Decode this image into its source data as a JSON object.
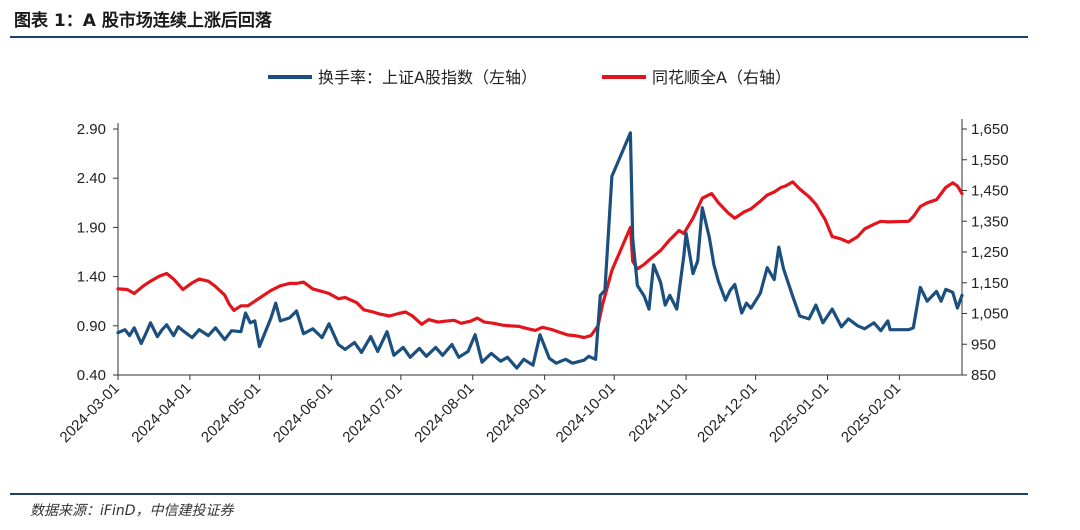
{
  "header": {
    "title": "图表 1：A 股市场连续上涨后回落",
    "source": "数据来源：iFinD，中信建投证券"
  },
  "chart_data": {
    "type": "line",
    "title": "图表 1：A 股市场连续上涨后回落",
    "x_ticks": [
      "2024-03-01",
      "2024-04-01",
      "2024-05-01",
      "2024-06-01",
      "2024-07-01",
      "2024-08-01",
      "2024-09-01",
      "2024-10-01",
      "2024-11-01",
      "2024-12-01",
      "2025-01-01",
      "2025-02-01"
    ],
    "x_range": [
      "2024-03-01",
      "2025-02-28"
    ],
    "y_left": {
      "label": "",
      "ylim": [
        0.4,
        2.9
      ],
      "ticks": [
        "0.40",
        "0.90",
        "1.40",
        "1.90",
        "2.40",
        "2.90"
      ]
    },
    "y_right": {
      "label": "",
      "ylim": [
        850,
        1650
      ],
      "ticks": [
        "850",
        "950",
        "1,050",
        "1,150",
        "1,250",
        "1,350",
        "1,450",
        "1,550",
        "1,650"
      ]
    },
    "legend_position": "top-center",
    "series": [
      {
        "name": "换手率：上证A股指数（左轴）",
        "axis": "left",
        "color": "#1b4f7e",
        "points": [
          [
            "2024-03-01",
            0.83
          ],
          [
            "2024-03-04",
            0.86
          ],
          [
            "2024-03-06",
            0.8
          ],
          [
            "2024-03-08",
            0.88
          ],
          [
            "2024-03-11",
            0.72
          ],
          [
            "2024-03-13",
            0.82
          ],
          [
            "2024-03-15",
            0.93
          ],
          [
            "2024-03-18",
            0.79
          ],
          [
            "2024-03-20",
            0.86
          ],
          [
            "2024-03-22",
            0.91
          ],
          [
            "2024-03-25",
            0.8
          ],
          [
            "2024-03-27",
            0.89
          ],
          [
            "2024-03-29",
            0.85
          ],
          [
            "2024-04-02",
            0.78
          ],
          [
            "2024-04-05",
            0.86
          ],
          [
            "2024-04-09",
            0.8
          ],
          [
            "2024-04-12",
            0.88
          ],
          [
            "2024-04-16",
            0.76
          ],
          [
            "2024-04-19",
            0.85
          ],
          [
            "2024-04-23",
            0.84
          ],
          [
            "2024-04-25",
            1.03
          ],
          [
            "2024-04-27",
            0.93
          ],
          [
            "2024-04-29",
            0.95
          ],
          [
            "2024-05-01",
            0.69
          ],
          [
            "2024-05-06",
            0.98
          ],
          [
            "2024-05-08",
            1.13
          ],
          [
            "2024-05-10",
            0.95
          ],
          [
            "2024-05-14",
            0.98
          ],
          [
            "2024-05-17",
            1.05
          ],
          [
            "2024-05-20",
            0.82
          ],
          [
            "2024-05-24",
            0.87
          ],
          [
            "2024-05-28",
            0.78
          ],
          [
            "2024-05-31",
            0.92
          ],
          [
            "2024-06-04",
            0.71
          ],
          [
            "2024-06-07",
            0.66
          ],
          [
            "2024-06-11",
            0.73
          ],
          [
            "2024-06-14",
            0.63
          ],
          [
            "2024-06-18",
            0.79
          ],
          [
            "2024-06-21",
            0.64
          ],
          [
            "2024-06-25",
            0.84
          ],
          [
            "2024-06-28",
            0.6
          ],
          [
            "2024-07-02",
            0.68
          ],
          [
            "2024-07-05",
            0.58
          ],
          [
            "2024-07-09",
            0.67
          ],
          [
            "2024-07-12",
            0.59
          ],
          [
            "2024-07-16",
            0.68
          ],
          [
            "2024-07-19",
            0.6
          ],
          [
            "2024-07-23",
            0.71
          ],
          [
            "2024-07-26",
            0.58
          ],
          [
            "2024-07-30",
            0.64
          ],
          [
            "2024-08-02",
            0.81
          ],
          [
            "2024-08-05",
            0.53
          ],
          [
            "2024-08-09",
            0.62
          ],
          [
            "2024-08-13",
            0.54
          ],
          [
            "2024-08-16",
            0.58
          ],
          [
            "2024-08-20",
            0.47
          ],
          [
            "2024-08-23",
            0.56
          ],
          [
            "2024-08-27",
            0.5
          ],
          [
            "2024-08-30",
            0.81
          ],
          [
            "2024-09-03",
            0.57
          ],
          [
            "2024-09-06",
            0.52
          ],
          [
            "2024-09-10",
            0.56
          ],
          [
            "2024-09-13",
            0.52
          ],
          [
            "2024-09-18",
            0.55
          ],
          [
            "2024-09-20",
            0.59
          ],
          [
            "2024-09-23",
            0.56
          ],
          [
            "2024-09-25",
            1.21
          ],
          [
            "2024-09-27",
            1.26
          ],
          [
            "2024-09-30",
            2.42
          ],
          [
            "2024-10-08",
            2.86
          ],
          [
            "2024-10-09",
            1.79
          ],
          [
            "2024-10-11",
            1.31
          ],
          [
            "2024-10-14",
            1.2
          ],
          [
            "2024-10-16",
            1.07
          ],
          [
            "2024-10-18",
            1.52
          ],
          [
            "2024-10-21",
            1.34
          ],
          [
            "2024-10-23",
            1.11
          ],
          [
            "2024-10-25",
            1.21
          ],
          [
            "2024-10-28",
            1.07
          ],
          [
            "2024-10-31",
            1.61
          ],
          [
            "2024-11-01",
            1.84
          ],
          [
            "2024-11-04",
            1.43
          ],
          [
            "2024-11-06",
            1.56
          ],
          [
            "2024-11-08",
            2.1
          ],
          [
            "2024-11-11",
            1.8
          ],
          [
            "2024-11-13",
            1.52
          ],
          [
            "2024-11-15",
            1.35
          ],
          [
            "2024-11-18",
            1.16
          ],
          [
            "2024-11-20",
            1.26
          ],
          [
            "2024-11-22",
            1.32
          ],
          [
            "2024-11-25",
            1.03
          ],
          [
            "2024-11-27",
            1.13
          ],
          [
            "2024-11-29",
            1.08
          ],
          [
            "2024-12-03",
            1.23
          ],
          [
            "2024-12-06",
            1.49
          ],
          [
            "2024-12-09",
            1.37
          ],
          [
            "2024-12-11",
            1.7
          ],
          [
            "2024-12-13",
            1.48
          ],
          [
            "2024-12-17",
            1.2
          ],
          [
            "2024-12-20",
            1.0
          ],
          [
            "2024-12-24",
            0.97
          ],
          [
            "2024-12-27",
            1.11
          ],
          [
            "2024-12-30",
            0.93
          ],
          [
            "2025-01-03",
            1.07
          ],
          [
            "2025-01-07",
            0.89
          ],
          [
            "2025-01-10",
            0.97
          ],
          [
            "2025-01-14",
            0.9
          ],
          [
            "2025-01-17",
            0.87
          ],
          [
            "2025-01-21",
            0.93
          ],
          [
            "2025-01-24",
            0.85
          ],
          [
            "2025-01-27",
            0.95
          ],
          [
            "2025-01-28",
            0.86
          ],
          [
            "2025-02-05",
            0.86
          ],
          [
            "2025-02-07",
            0.88
          ],
          [
            "2025-02-10",
            1.29
          ],
          [
            "2025-02-13",
            1.15
          ],
          [
            "2025-02-17",
            1.25
          ],
          [
            "2025-02-19",
            1.15
          ],
          [
            "2025-02-21",
            1.27
          ],
          [
            "2025-02-24",
            1.24
          ],
          [
            "2025-02-26",
            1.08
          ],
          [
            "2025-02-28",
            1.21
          ]
        ]
      },
      {
        "name": "同花顺全A（右轴）",
        "axis": "right",
        "color": "#e3151c",
        "points": [
          [
            "2024-03-01",
            1130
          ],
          [
            "2024-03-05",
            1128
          ],
          [
            "2024-03-08",
            1115
          ],
          [
            "2024-03-12",
            1140
          ],
          [
            "2024-03-15",
            1155
          ],
          [
            "2024-03-19",
            1172
          ],
          [
            "2024-03-22",
            1180
          ],
          [
            "2024-03-25",
            1162
          ],
          [
            "2024-03-27",
            1145
          ],
          [
            "2024-03-29",
            1128
          ],
          [
            "2024-04-02",
            1150
          ],
          [
            "2024-04-05",
            1162
          ],
          [
            "2024-04-09",
            1155
          ],
          [
            "2024-04-12",
            1138
          ],
          [
            "2024-04-16",
            1110
          ],
          [
            "2024-04-18",
            1080
          ],
          [
            "2024-04-20",
            1060
          ],
          [
            "2024-04-23",
            1075
          ],
          [
            "2024-04-26",
            1075
          ],
          [
            "2024-04-29",
            1090
          ],
          [
            "2024-05-06",
            1125
          ],
          [
            "2024-05-10",
            1140
          ],
          [
            "2024-05-14",
            1148
          ],
          [
            "2024-05-17",
            1148
          ],
          [
            "2024-05-20",
            1152
          ],
          [
            "2024-05-24",
            1130
          ],
          [
            "2024-05-28",
            1122
          ],
          [
            "2024-05-31",
            1115
          ],
          [
            "2024-06-04",
            1098
          ],
          [
            "2024-06-07",
            1102
          ],
          [
            "2024-06-12",
            1085
          ],
          [
            "2024-06-15",
            1062
          ],
          [
            "2024-06-19",
            1055
          ],
          [
            "2024-06-22",
            1048
          ],
          [
            "2024-06-26",
            1042
          ],
          [
            "2024-06-30",
            1050
          ],
          [
            "2024-07-03",
            1055
          ],
          [
            "2024-07-06",
            1042
          ],
          [
            "2024-07-10",
            1015
          ],
          [
            "2024-07-13",
            1030
          ],
          [
            "2024-07-17",
            1022
          ],
          [
            "2024-07-20",
            1025
          ],
          [
            "2024-07-24",
            1028
          ],
          [
            "2024-07-27",
            1018
          ],
          [
            "2024-07-31",
            1025
          ],
          [
            "2024-08-03",
            1035
          ],
          [
            "2024-08-06",
            1022
          ],
          [
            "2024-08-10",
            1018
          ],
          [
            "2024-08-14",
            1012
          ],
          [
            "2024-08-17",
            1010
          ],
          [
            "2024-08-21",
            1008
          ],
          [
            "2024-08-24",
            1002
          ],
          [
            "2024-08-28",
            995
          ],
          [
            "2024-08-31",
            1005
          ],
          [
            "2024-09-04",
            998
          ],
          [
            "2024-09-07",
            990
          ],
          [
            "2024-09-11",
            980
          ],
          [
            "2024-09-14",
            978
          ],
          [
            "2024-09-18",
            972
          ],
          [
            "2024-09-21",
            978
          ],
          [
            "2024-09-24",
            1010
          ],
          [
            "2024-09-26",
            1080
          ],
          [
            "2024-09-30",
            1190
          ],
          [
            "2024-10-08",
            1330
          ],
          [
            "2024-10-09",
            1220
          ],
          [
            "2024-10-11",
            1195
          ],
          [
            "2024-10-14",
            1210
          ],
          [
            "2024-10-17",
            1230
          ],
          [
            "2024-10-21",
            1255
          ],
          [
            "2024-10-25",
            1290
          ],
          [
            "2024-10-29",
            1320
          ],
          [
            "2024-10-31",
            1310
          ],
          [
            "2024-11-04",
            1360
          ],
          [
            "2024-11-08",
            1425
          ],
          [
            "2024-11-12",
            1440
          ],
          [
            "2024-11-15",
            1410
          ],
          [
            "2024-11-19",
            1378
          ],
          [
            "2024-11-22",
            1360
          ],
          [
            "2024-11-26",
            1380
          ],
          [
            "2024-11-29",
            1390
          ],
          [
            "2024-12-03",
            1415
          ],
          [
            "2024-12-06",
            1435
          ],
          [
            "2024-12-09",
            1445
          ],
          [
            "2024-12-12",
            1460
          ],
          [
            "2024-12-14",
            1465
          ],
          [
            "2024-12-17",
            1478
          ],
          [
            "2024-12-20",
            1455
          ],
          [
            "2024-12-24",
            1430
          ],
          [
            "2024-12-27",
            1405
          ],
          [
            "2024-12-31",
            1355
          ],
          [
            "2025-01-03",
            1300
          ],
          [
            "2025-01-07",
            1292
          ],
          [
            "2025-01-10",
            1282
          ],
          [
            "2025-01-14",
            1300
          ],
          [
            "2025-01-17",
            1325
          ],
          [
            "2025-01-21",
            1340
          ],
          [
            "2025-01-24",
            1350
          ],
          [
            "2025-01-27",
            1348
          ],
          [
            "2025-02-05",
            1350
          ],
          [
            "2025-02-07",
            1365
          ],
          [
            "2025-02-10",
            1398
          ],
          [
            "2025-02-13",
            1410
          ],
          [
            "2025-02-17",
            1420
          ],
          [
            "2025-02-19",
            1440
          ],
          [
            "2025-02-21",
            1460
          ],
          [
            "2025-02-24",
            1475
          ],
          [
            "2025-02-26",
            1465
          ],
          [
            "2025-02-28",
            1440
          ]
        ]
      }
    ]
  }
}
